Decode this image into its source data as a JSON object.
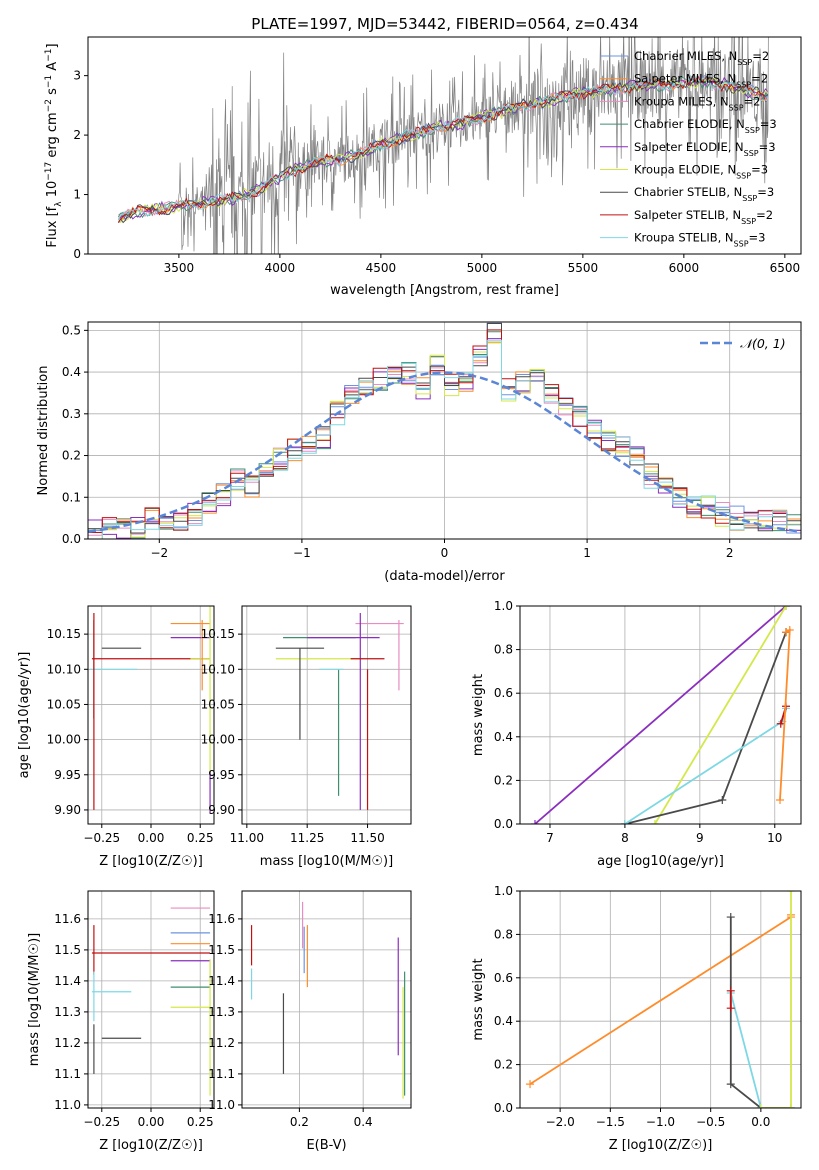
{
  "figure_title": "PLATE=1997, MJD=53442, FIBERID=0564, z=0.434",
  "colors": {
    "Chabrier MILES": "#6f93e0",
    "Salpeter MILES": "#ff8c2b",
    "Kroupa MILES": "#e88cc2",
    "Chabrier ELODIE": "#3f8f6f",
    "Salpeter ELODIE": "#8a2fbd",
    "Kroupa ELODIE": "#d4e84a",
    "Chabrier STELIB": "#4a4a4a",
    "Salpeter STELIB": "#c01010",
    "Kroupa STELIB": "#7ed8e4",
    "data": "#808080",
    "gaussian": "#5b86d6"
  },
  "chart_data": [
    {
      "id": "spectrum",
      "type": "line",
      "xlabel": "wavelength [Angstrom, rest frame]",
      "ylabel": "Flux [f_λ 10^-17 erg cm^-2 s^-1 A^-1]",
      "xlim": [
        3050,
        6580
      ],
      "ylim": [
        0,
        3.65
      ],
      "xticks": [
        3500,
        4000,
        4500,
        5000,
        5500,
        6000,
        6500
      ],
      "yticks": [
        0,
        1,
        2,
        3
      ],
      "grid": false,
      "legend_position": "top-right",
      "legend": [
        {
          "name": "Chabrier MILES",
          "nssp": "2"
        },
        {
          "name": "Salpeter MILES",
          "nssp": "2"
        },
        {
          "name": "Kroupa MILES",
          "nssp": "2"
        },
        {
          "name": "Chabrier ELODIE",
          "nssp": "3"
        },
        {
          "name": "Salpeter ELODIE",
          "nssp": "3"
        },
        {
          "name": "Kroupa ELODIE",
          "nssp": "3"
        },
        {
          "name": "Chabrier STELIB",
          "nssp": "3"
        },
        {
          "name": "Salpeter STELIB",
          "nssp": "2"
        },
        {
          "name": "Kroupa STELIB",
          "nssp": "3"
        }
      ],
      "model_continuum": {
        "x": [
          3200,
          3300,
          3400,
          3500,
          3600,
          3700,
          3800,
          3900,
          4000,
          4100,
          4200,
          4300,
          4400,
          4500,
          4600,
          4700,
          4800,
          4900,
          5000,
          5100,
          5200,
          5300,
          5400,
          5500,
          5600,
          5700,
          5800,
          5900,
          6000,
          6100,
          6200,
          6300,
          6420
        ],
        "y": [
          0.6,
          0.72,
          0.76,
          0.8,
          0.85,
          0.9,
          0.95,
          1.1,
          1.3,
          1.45,
          1.55,
          1.6,
          1.7,
          1.85,
          1.95,
          2.05,
          2.15,
          2.2,
          2.3,
          2.4,
          2.5,
          2.55,
          2.65,
          2.72,
          2.75,
          2.8,
          2.85,
          2.85,
          2.88,
          2.9,
          2.85,
          2.75,
          2.65
        ]
      }
    },
    {
      "id": "residuals",
      "type": "line",
      "xlabel": "(data-model)/error",
      "ylabel": "Normed distribution",
      "xlim": [
        -2.5,
        2.5
      ],
      "ylim": [
        0,
        0.52
      ],
      "xticks": [
        -2,
        -1,
        0,
        1,
        2
      ],
      "yticks": [
        0.0,
        0.1,
        0.2,
        0.3,
        0.4,
        0.5
      ],
      "grid": true,
      "legend_position": "top-right",
      "legend": [
        {
          "name": "N(0, 1)"
        }
      ],
      "histogram_centers": [
        -2.45,
        -2.35,
        -2.25,
        -2.15,
        -2.05,
        -1.95,
        -1.85,
        -1.75,
        -1.65,
        -1.55,
        -1.45,
        -1.35,
        -1.25,
        -1.15,
        -1.05,
        -0.95,
        -0.85,
        -0.75,
        -0.65,
        -0.55,
        -0.45,
        -0.35,
        -0.25,
        -0.15,
        -0.05,
        0.05,
        0.15,
        0.25,
        0.35,
        0.45,
        0.55,
        0.65,
        0.75,
        0.85,
        0.95,
        1.05,
        1.15,
        1.25,
        1.35,
        1.45,
        1.55,
        1.65,
        1.75,
        1.85,
        1.95,
        2.05,
        2.15,
        2.25,
        2.35,
        2.45
      ],
      "histogram_values": [
        0.02,
        0.025,
        0.02,
        0.03,
        0.045,
        0.05,
        0.045,
        0.06,
        0.09,
        0.11,
        0.14,
        0.13,
        0.16,
        0.19,
        0.21,
        0.22,
        0.24,
        0.3,
        0.35,
        0.36,
        0.38,
        0.39,
        0.4,
        0.36,
        0.42,
        0.37,
        0.38,
        0.44,
        0.49,
        0.36,
        0.38,
        0.4,
        0.35,
        0.31,
        0.3,
        0.27,
        0.24,
        0.22,
        0.2,
        0.15,
        0.13,
        0.1,
        0.08,
        0.08,
        0.06,
        0.05,
        0.05,
        0.045,
        0.04,
        0.04
      ]
    },
    {
      "id": "age_vs_z",
      "type": "scatter",
      "xlabel": "Z [log10(Z/Z☉)]",
      "ylabel": "age  [log10(age/yr)]",
      "xlim": [
        -0.32,
        0.32
      ],
      "ylim": [
        9.88,
        10.19
      ],
      "xticks": [
        -0.25,
        0.0,
        0.25
      ],
      "yticks": [
        9.9,
        9.95,
        10.0,
        10.05,
        10.1,
        10.15
      ],
      "grid": true,
      "errorbars": [
        {
          "series": "Chabrier STELIB",
          "x": -0.15,
          "y": 10.13,
          "xerr": 0.1,
          "yerr": 0.0
        },
        {
          "series": "Kroupa STELIB",
          "x": -0.19,
          "y": 10.1,
          "xerr": 0.12,
          "yerr": 0.0
        },
        {
          "series": "Salpeter STELIB",
          "x": 0.0,
          "y": 10.115,
          "xerr": 0.3,
          "yerr": 0.0
        },
        {
          "series": "Chabrier STELIB",
          "x": -0.29,
          "y": 10.1,
          "xerr": 0.0,
          "yerr": 0.07
        },
        {
          "series": "Kroupa ELODIE",
          "x": 0.25,
          "y": 10.115,
          "xerr": 0.05,
          "yerr": 0.0
        },
        {
          "series": "Salpeter ELODIE",
          "x": 0.2,
          "y": 10.145,
          "xerr": 0.1,
          "yerr": 0.0
        },
        {
          "series": "Salpeter MILES",
          "x": 0.2,
          "y": 10.165,
          "xerr": 0.1,
          "yerr": 0.0
        },
        {
          "series": "Salpeter MILES",
          "x": 0.26,
          "y": 10.12,
          "xerr": 0.0,
          "yerr": 0.05
        },
        {
          "series": "Salpeter STELIB",
          "x": -0.29,
          "y": 10.04,
          "xerr": 0.0,
          "yerr": 0.14
        },
        {
          "series": "Kroupa ELODIE",
          "x": 0.3,
          "y": 10.07,
          "xerr": 0.0,
          "yerr": 0.12
        },
        {
          "series": "Salpeter ELODIE",
          "x": 0.3,
          "y": 9.925,
          "xerr": 0.0,
          "yerr": 0.03
        }
      ]
    },
    {
      "id": "age_vs_mass",
      "type": "scatter",
      "xlabel": "mass [log10(M/M☉)]",
      "ylabel": "",
      "xlim": [
        10.98,
        11.68
      ],
      "ylim": [
        9.88,
        10.19
      ],
      "xticks": [
        11.0,
        11.25,
        11.5
      ],
      "yticks": [
        9.9,
        9.95,
        10.0,
        10.05,
        10.1,
        10.15
      ],
      "grid": true,
      "errorbars": [
        {
          "series": "Kroupa ELODIE",
          "x": 11.3,
          "y": 10.115,
          "xerr": 0.18,
          "yerr": 0.0
        },
        {
          "series": "Chabrier STELIB",
          "x": 11.22,
          "y": 10.13,
          "xerr": 0.1,
          "yerr": 0.0
        },
        {
          "series": "Chabrier ELODIE",
          "x": 11.3,
          "y": 10.145,
          "xerr": 0.15,
          "yerr": 0.0
        },
        {
          "series": "Salpeter ELODIE",
          "x": 11.4,
          "y": 10.145,
          "xerr": 0.15,
          "yerr": 0.0
        },
        {
          "series": "Kroupa MILES",
          "x": 11.55,
          "y": 10.165,
          "xerr": 0.1,
          "yerr": 0.0
        },
        {
          "series": "Chabrier STELIB",
          "x": 11.22,
          "y": 10.065,
          "xerr": 0.0,
          "yerr": 0.065
        },
        {
          "series": "Chabrier ELODIE",
          "x": 11.38,
          "y": 10.01,
          "xerr": 0.0,
          "yerr": 0.09
        },
        {
          "series": "Salpeter STELIB",
          "x": 11.5,
          "y": 10.0,
          "xerr": 0.0,
          "yerr": 0.1
        },
        {
          "series": "Salpeter ELODIE",
          "x": 11.47,
          "y": 10.04,
          "xerr": 0.0,
          "yerr": 0.14
        },
        {
          "series": "Kroupa MILES",
          "x": 11.63,
          "y": 10.12,
          "xerr": 0.0,
          "yerr": 0.05
        },
        {
          "series": "Kroupa STELIB",
          "x": 11.35,
          "y": 10.1,
          "xerr": 0.05,
          "yerr": 0.0
        },
        {
          "series": "Salpeter STELIB",
          "x": 11.5,
          "y": 10.115,
          "xerr": 0.07,
          "yerr": 0.0
        }
      ]
    },
    {
      "id": "weight_vs_age",
      "type": "line",
      "xlabel": "age  [log10(age/yr)]",
      "ylabel": "mass weight",
      "xlim": [
        6.6,
        10.35
      ],
      "ylim": [
        0,
        1.0
      ],
      "xticks": [
        7,
        8,
        9,
        10
      ],
      "yticks": [
        0.0,
        0.2,
        0.4,
        0.6,
        0.8,
        1.0
      ],
      "grid": true,
      "series": [
        {
          "name": "Salpeter ELODIE",
          "x": [
            6.8,
            10.15
          ],
          "y": [
            0.0,
            1.0
          ]
        },
        {
          "name": "Kroupa ELODIE",
          "x": [
            8.4,
            10.15
          ],
          "y": [
            0.0,
            1.0
          ]
        },
        {
          "name": "Chabrier STELIB",
          "x": [
            8.0,
            9.3,
            10.15,
            10.15
          ],
          "y": [
            0.0,
            0.11,
            0.88,
            0.88
          ]
        },
        {
          "name": "Kroupa STELIB",
          "x": [
            8.0,
            10.1,
            10.15
          ],
          "y": [
            0.0,
            0.47,
            0.53
          ]
        },
        {
          "name": "Salpeter STELIB",
          "x": [
            10.08,
            10.15
          ],
          "y": [
            0.46,
            0.54
          ]
        },
        {
          "name": "Salpeter MILES",
          "x": [
            10.07,
            10.2,
            10.15
          ],
          "y": [
            0.11,
            0.89,
            0.88
          ]
        }
      ]
    },
    {
      "id": "mass_vs_z",
      "type": "scatter",
      "xlabel": "Z [log10(Z/Z☉)]",
      "ylabel": "mass [log10(M/M☉)]",
      "xlim": [
        -0.32,
        0.32
      ],
      "ylim": [
        10.99,
        11.69
      ],
      "xticks": [
        -0.25,
        0.0,
        0.25
      ],
      "yticks": [
        11.0,
        11.1,
        11.2,
        11.3,
        11.4,
        11.5,
        11.6
      ],
      "grid": true,
      "errorbars": [
        {
          "series": "Kroupa MILES",
          "x": 0.2,
          "y": 11.635,
          "xerr": 0.1,
          "yerr": 0.0
        },
        {
          "series": "Chabrier MILES",
          "x": 0.2,
          "y": 11.555,
          "xerr": 0.1,
          "yerr": 0.0
        },
        {
          "series": "Salpeter MILES",
          "x": 0.2,
          "y": 11.52,
          "xerr": 0.1,
          "yerr": 0.0
        },
        {
          "series": "Salpeter STELIB",
          "x": 0.0,
          "y": 11.49,
          "xerr": 0.3,
          "yerr": 0.0
        },
        {
          "series": "Salpeter ELODIE",
          "x": 0.2,
          "y": 11.465,
          "xerr": 0.1,
          "yerr": 0.0
        },
        {
          "series": "Chabrier ELODIE",
          "x": 0.2,
          "y": 11.38,
          "xerr": 0.1,
          "yerr": 0.0
        },
        {
          "series": "Kroupa STELIB",
          "x": -0.2,
          "y": 11.365,
          "xerr": 0.1,
          "yerr": 0.0
        },
        {
          "series": "Kroupa ELODIE",
          "x": 0.2,
          "y": 11.315,
          "xerr": 0.1,
          "yerr": 0.0
        },
        {
          "series": "Chabrier STELIB",
          "x": -0.15,
          "y": 11.215,
          "xerr": 0.1,
          "yerr": 0.0
        },
        {
          "series": "Salpeter STELIB",
          "x": -0.29,
          "y": 11.5,
          "xerr": 0.0,
          "yerr": 0.08
        },
        {
          "series": "Kroupa STELIB",
          "x": -0.29,
          "y": 11.35,
          "xerr": 0.0,
          "yerr": 0.08
        },
        {
          "series": "Chabrier STELIB",
          "x": -0.29,
          "y": 11.18,
          "xerr": 0.0,
          "yerr": 0.08
        },
        {
          "series": "Kroupa ELODIE",
          "x": 0.3,
          "y": 11.25,
          "xerr": 0.0,
          "yerr": 0.22
        }
      ]
    },
    {
      "id": "mass_vs_ebv",
      "type": "scatter",
      "xlabel": "E(B-V)",
      "ylabel": "",
      "xlim": [
        0.02,
        0.55
      ],
      "ylim": [
        10.99,
        11.69
      ],
      "xticks": [
        0.2,
        0.4
      ],
      "yticks": [
        11.0,
        11.1,
        11.2,
        11.3,
        11.4,
        11.5,
        11.6
      ],
      "grid": true,
      "errorbars": [
        {
          "series": "Salpeter STELIB",
          "x": 0.05,
          "y": 11.515,
          "xerr": 0.0,
          "yerr": 0.065
        },
        {
          "series": "Kroupa STELIB",
          "x": 0.05,
          "y": 11.39,
          "xerr": 0.0,
          "yerr": 0.05
        },
        {
          "series": "Chabrier STELIB",
          "x": 0.15,
          "y": 11.23,
          "xerr": 0.0,
          "yerr": 0.13
        },
        {
          "series": "Kroupa MILES",
          "x": 0.21,
          "y": 11.58,
          "xerr": 0.0,
          "yerr": 0.075
        },
        {
          "series": "Salpeter MILES",
          "x": 0.225,
          "y": 11.48,
          "xerr": 0.0,
          "yerr": 0.1
        },
        {
          "series": "Chabrier MILES",
          "x": 0.215,
          "y": 11.5,
          "xerr": 0.0,
          "yerr": 0.075
        },
        {
          "series": "Salpeter ELODIE",
          "x": 0.51,
          "y": 11.35,
          "xerr": 0.0,
          "yerr": 0.19
        },
        {
          "series": "Chabrier ELODIE",
          "x": 0.53,
          "y": 11.23,
          "xerr": 0.0,
          "yerr": 0.2
        },
        {
          "series": "Kroupa ELODIE",
          "x": 0.525,
          "y": 11.2,
          "xerr": 0.0,
          "yerr": 0.18
        }
      ]
    },
    {
      "id": "weight_vs_z",
      "type": "line",
      "xlabel": "Z [log10(Z/Z☉)]",
      "ylabel": "mass weight",
      "xlim": [
        -2.4,
        0.4
      ],
      "ylim": [
        0,
        1.0
      ],
      "xticks": [
        -2.0,
        -1.5,
        -1.0,
        -0.5,
        0.0
      ],
      "yticks": [
        0.0,
        0.2,
        0.4,
        0.6,
        0.8,
        1.0
      ],
      "grid": true,
      "series": [
        {
          "name": "Salpeter MILES",
          "x": [
            -2.3,
            0.3,
            0.3
          ],
          "y": [
            0.11,
            0.88,
            0.89
          ]
        },
        {
          "name": "Chabrier STELIB",
          "x": [
            -0.3,
            -0.3,
            0.0,
            0.3
          ],
          "y": [
            0.88,
            0.11,
            0.0,
            0.0
          ]
        },
        {
          "name": "Kroupa STELIB",
          "x": [
            -0.3,
            0.0
          ],
          "y": [
            0.53,
            0.0
          ]
        },
        {
          "name": "Salpeter STELIB",
          "x": [
            -0.3,
            -0.3
          ],
          "y": [
            0.46,
            0.54
          ]
        },
        {
          "name": "Kroupa ELODIE",
          "x": [
            0.0,
            0.3,
            0.3
          ],
          "y": [
            0.0,
            0.0,
            1.0
          ]
        }
      ]
    }
  ]
}
